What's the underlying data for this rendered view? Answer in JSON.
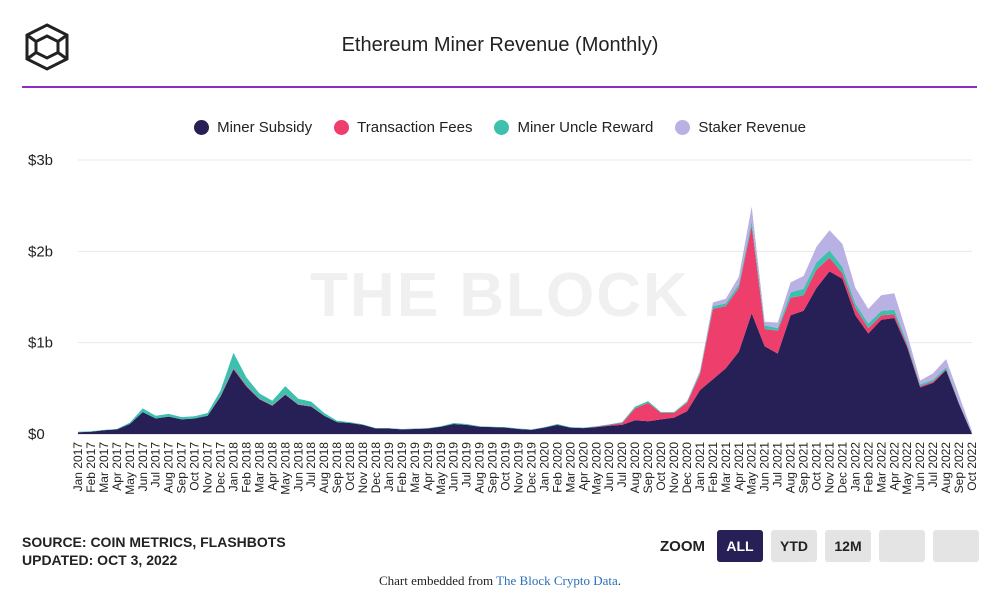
{
  "header": {
    "title": "Ethereum Miner Revenue (Monthly)"
  },
  "watermark": "THE BLOCK",
  "legend": [
    {
      "label": "Miner Subsidy",
      "color": "#262057"
    },
    {
      "label": "Transaction Fees",
      "color": "#ee3e6b"
    },
    {
      "label": "Miner Uncle Reward",
      "color": "#3ec0ae"
    },
    {
      "label": "Staker Revenue",
      "color": "#b9b0e3"
    }
  ],
  "footer": {
    "source": "SOURCE: COIN METRICS, FLASHBOTS",
    "updated": "UPDATED: OCT 3, 2022",
    "zoom_label": "ZOOM",
    "zoom_buttons": [
      "ALL",
      "YTD",
      "12M",
      "",
      ""
    ],
    "embed_prefix": "Chart embedded from ",
    "embed_link": "The Block Crypto Data",
    "embed_suffix": "."
  },
  "chart_data": {
    "type": "area",
    "stacked": true,
    "title": "Ethereum Miner Revenue (Monthly)",
    "ylim": [
      0,
      3000000000
    ],
    "yticks": [
      {
        "value": 0,
        "label": "$0"
      },
      {
        "value": 1000000000,
        "label": "$1b"
      },
      {
        "value": 2000000000,
        "label": "$2b"
      },
      {
        "value": 3000000000,
        "label": "$3b"
      }
    ],
    "grid": true,
    "legend_position": "top",
    "categories": [
      "Jan 2017",
      "Feb 2017",
      "Mar 2017",
      "Apr 2017",
      "May 2017",
      "Jun 2017",
      "Jul 2017",
      "Aug 2017",
      "Sep 2017",
      "Oct 2017",
      "Nov 2017",
      "Dec 2017",
      "Jan 2018",
      "Feb 2018",
      "Mar 2018",
      "Apr 2018",
      "May 2018",
      "Jun 2018",
      "Jul 2018",
      "Aug 2018",
      "Sep 2018",
      "Oct 2018",
      "Nov 2018",
      "Dec 2018",
      "Jan 2019",
      "Feb 2019",
      "Mar 2019",
      "Apr 2019",
      "May 2019",
      "Jun 2019",
      "Jul 2019",
      "Aug 2019",
      "Sep 2019",
      "Oct 2019",
      "Nov 2019",
      "Dec 2019",
      "Jan 2020",
      "Feb 2020",
      "Mar 2020",
      "Apr 2020",
      "May 2020",
      "Jun 2020",
      "Jul 2020",
      "Aug 2020",
      "Sep 2020",
      "Oct 2020",
      "Nov 2020",
      "Dec 2020",
      "Jan 2021",
      "Feb 2021",
      "Mar 2021",
      "Apr 2021",
      "May 2021",
      "Jun 2021",
      "Jul 2021",
      "Aug 2021",
      "Sep 2021",
      "Oct 2021",
      "Nov 2021",
      "Dec 2021",
      "Jan 2022",
      "Feb 2022",
      "Mar 2022",
      "Apr 2022",
      "May 2022",
      "Jun 2022",
      "Jul 2022",
      "Aug 2022",
      "Sep 2022",
      "Oct 2022"
    ],
    "series": [
      {
        "name": "Miner Subsidy",
        "color": "#262057",
        "values": [
          20000000,
          25000000,
          40000000,
          50000000,
          110000000,
          240000000,
          170000000,
          190000000,
          160000000,
          170000000,
          200000000,
          410000000,
          710000000,
          520000000,
          380000000,
          310000000,
          430000000,
          320000000,
          300000000,
          200000000,
          130000000,
          120000000,
          100000000,
          60000000,
          60000000,
          50000000,
          55000000,
          60000000,
          80000000,
          110000000,
          100000000,
          80000000,
          75000000,
          70000000,
          55000000,
          45000000,
          70000000,
          100000000,
          70000000,
          65000000,
          75000000,
          90000000,
          100000000,
          150000000,
          140000000,
          160000000,
          180000000,
          250000000,
          480000000,
          600000000,
          720000000,
          900000000,
          1320000000,
          960000000,
          880000000,
          1300000000,
          1350000000,
          1600000000,
          1780000000,
          1700000000,
          1300000000,
          1100000000,
          1250000000,
          1270000000,
          950000000,
          510000000,
          560000000,
          700000000,
          330000000,
          0
        ]
      },
      {
        "name": "Transaction Fees",
        "color": "#ee3e6b",
        "values": [
          0,
          0,
          0,
          0,
          0,
          0,
          0,
          0,
          0,
          0,
          0,
          5000000,
          10000000,
          10000000,
          5000000,
          5000000,
          5000000,
          5000000,
          5000000,
          0,
          0,
          0,
          0,
          0,
          0,
          0,
          0,
          0,
          0,
          0,
          0,
          0,
          0,
          0,
          0,
          0,
          0,
          0,
          0,
          0,
          5000000,
          10000000,
          20000000,
          130000000,
          200000000,
          70000000,
          50000000,
          90000000,
          170000000,
          770000000,
          680000000,
          700000000,
          960000000,
          190000000,
          250000000,
          190000000,
          170000000,
          200000000,
          150000000,
          60000000,
          80000000,
          60000000,
          50000000,
          40000000,
          20000000,
          15000000,
          15000000,
          10000000,
          5000000,
          0
        ]
      },
      {
        "name": "Miner Uncle Reward",
        "color": "#3ec0ae",
        "values": [
          5000000,
          5000000,
          5000000,
          5000000,
          15000000,
          40000000,
          30000000,
          30000000,
          25000000,
          25000000,
          30000000,
          60000000,
          170000000,
          90000000,
          60000000,
          50000000,
          90000000,
          60000000,
          50000000,
          30000000,
          15000000,
          10000000,
          5000000,
          5000000,
          5000000,
          5000000,
          5000000,
          5000000,
          5000000,
          10000000,
          10000000,
          5000000,
          5000000,
          5000000,
          5000000,
          5000000,
          5000000,
          10000000,
          5000000,
          5000000,
          5000000,
          5000000,
          10000000,
          20000000,
          20000000,
          10000000,
          10000000,
          15000000,
          20000000,
          30000000,
          30000000,
          40000000,
          50000000,
          40000000,
          30000000,
          60000000,
          70000000,
          80000000,
          80000000,
          70000000,
          50000000,
          50000000,
          50000000,
          50000000,
          30000000,
          20000000,
          20000000,
          20000000,
          10000000,
          0
        ]
      },
      {
        "name": "Staker Revenue",
        "color": "#b9b0e3",
        "values": [
          0,
          0,
          0,
          0,
          0,
          0,
          0,
          0,
          0,
          0,
          0,
          0,
          0,
          0,
          0,
          0,
          0,
          0,
          0,
          0,
          0,
          0,
          0,
          0,
          0,
          0,
          0,
          0,
          0,
          0,
          0,
          0,
          0,
          0,
          0,
          0,
          0,
          0,
          0,
          0,
          0,
          0,
          0,
          0,
          0,
          0,
          0,
          5000000,
          20000000,
          40000000,
          50000000,
          80000000,
          160000000,
          40000000,
          60000000,
          110000000,
          140000000,
          170000000,
          220000000,
          250000000,
          170000000,
          160000000,
          170000000,
          180000000,
          90000000,
          40000000,
          70000000,
          90000000,
          80000000,
          30000000
        ]
      }
    ]
  }
}
